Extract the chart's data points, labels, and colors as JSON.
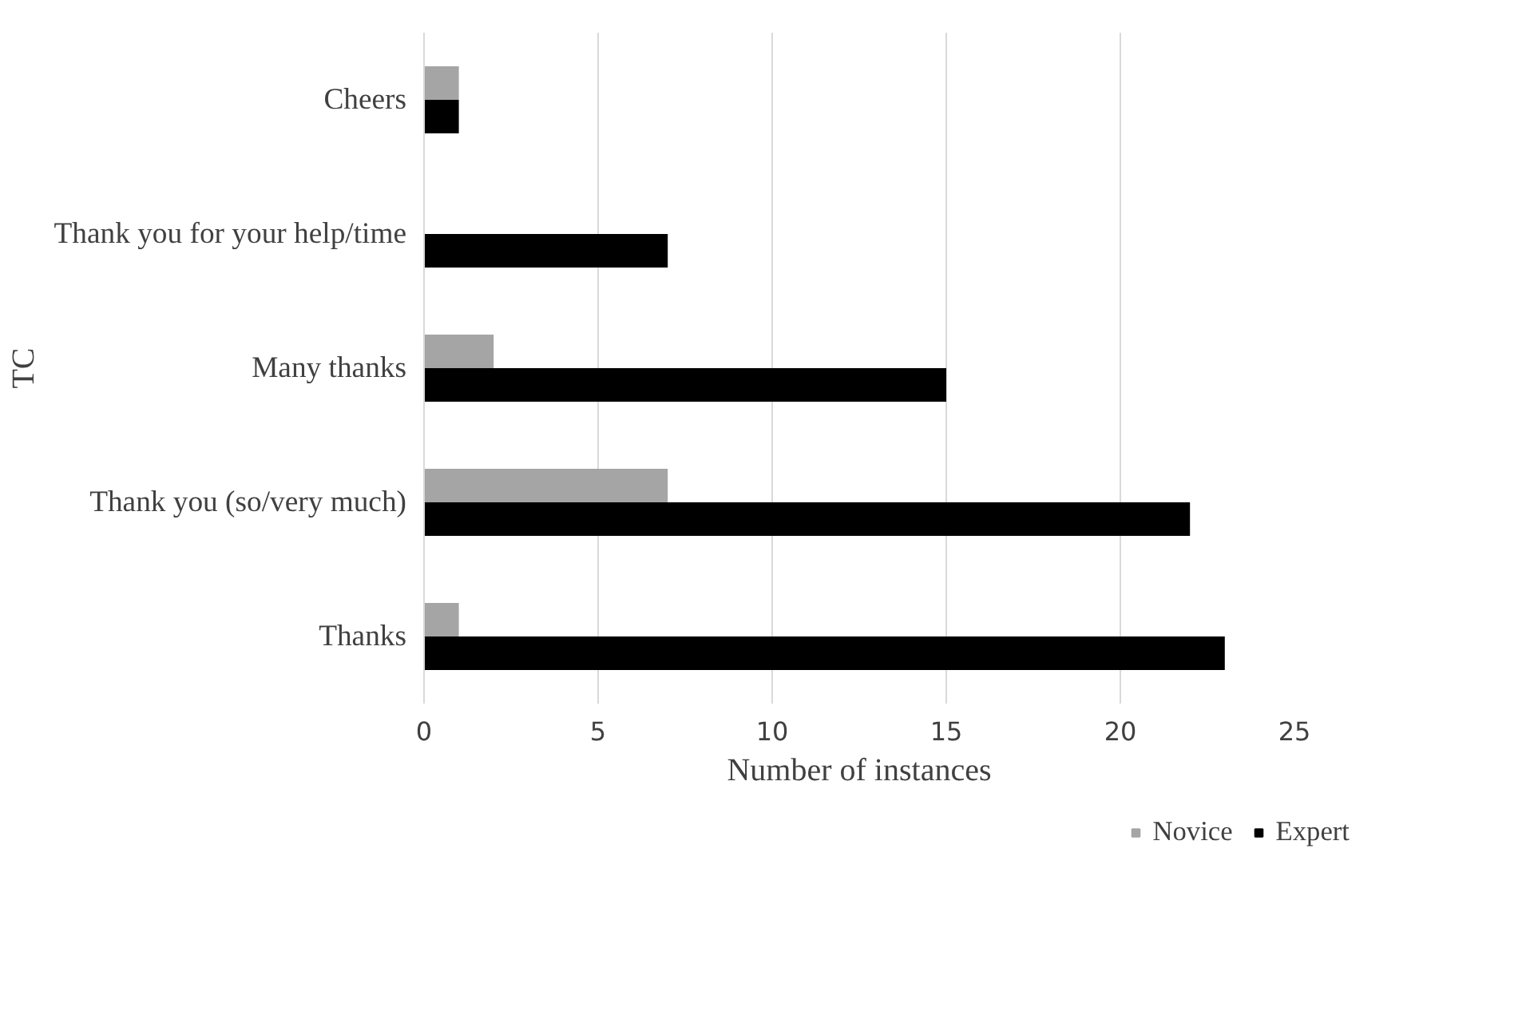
{
  "chart_data": {
    "type": "bar",
    "orientation": "horizontal",
    "xlabel": "Number of instances",
    "ylabel": "TC",
    "categories": [
      "Cheers",
      "Thank you for your help/time",
      "Many thanks",
      "Thank you (so/very much)",
      "Thanks"
    ],
    "series": [
      {
        "name": "Novice",
        "color": "#a5a5a5",
        "values": [
          1,
          null,
          2,
          7,
          1
        ]
      },
      {
        "name": "Expert",
        "color": "#000000",
        "values": [
          1,
          7,
          15,
          22,
          23
        ]
      }
    ],
    "xlim": [
      0,
      25
    ],
    "xticks": [
      0,
      5,
      10,
      15,
      20,
      25
    ],
    "grid": "x",
    "legend": "bottom right"
  }
}
